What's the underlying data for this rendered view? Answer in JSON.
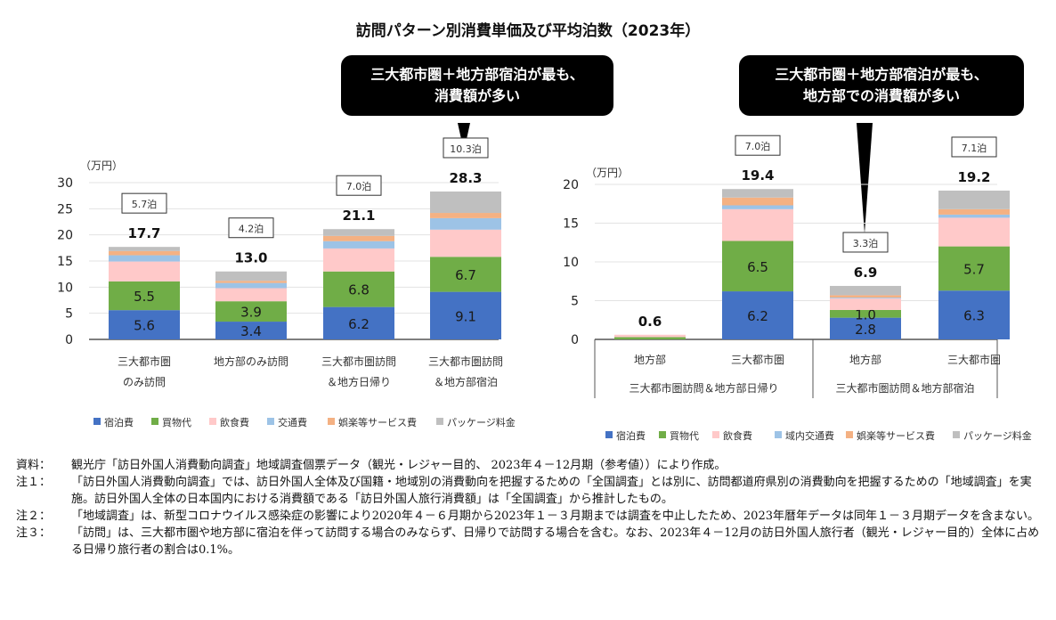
{
  "title": "訪問パターン別消費単価及び平均泊数（2023年）",
  "callouts": [
    {
      "lines": [
        "三大都市圏＋地方部宿泊が最も、",
        "消費額が多い"
      ]
    },
    {
      "lines": [
        "三大都市圏＋地方部宿泊が最も、",
        "地方部での消費額が多い"
      ]
    }
  ],
  "chart_data": [
    {
      "type": "bar",
      "stacked": true,
      "ylabel": "（万円）",
      "ylim": [
        0,
        30
      ],
      "yticks": [
        0,
        5,
        10,
        15,
        20,
        25,
        30
      ],
      "grid": true,
      "legend_position": "bottom",
      "categories": [
        [
          "三大都市圏",
          "のみ訪問"
        ],
        [
          "地方部のみ訪問"
        ],
        [
          "三大都市圏訪問",
          "＆地方日帰り"
        ],
        [
          "三大都市圏訪問",
          "＆地方部宿泊"
        ]
      ],
      "totals": [
        "17.7",
        "13.0",
        "21.1",
        "28.3"
      ],
      "nights": [
        "5.7泊",
        "4.2泊",
        "7.0泊",
        "10.3泊"
      ],
      "series": [
        {
          "name": "宿泊費",
          "color": "#4472c4",
          "values": [
            5.6,
            3.4,
            6.2,
            9.1
          ],
          "labeled": true
        },
        {
          "name": "買物代",
          "color": "#70ad47",
          "values": [
            5.5,
            3.9,
            6.8,
            6.7
          ],
          "labeled": true
        },
        {
          "name": "飲食費",
          "color": "#ffc9c9",
          "values": [
            3.8,
            2.5,
            4.4,
            5.2
          ]
        },
        {
          "name": "交通費",
          "color": "#9dc3e6",
          "values": [
            1.2,
            1.0,
            1.4,
            2.2
          ]
        },
        {
          "name": "娯楽等サービス費",
          "color": "#f4b183",
          "values": [
            0.8,
            0.4,
            1.0,
            1.0
          ]
        },
        {
          "name": "パッケージ料金",
          "color": "#bfbfbf",
          "values": [
            0.8,
            1.8,
            1.3,
            4.1
          ]
        }
      ]
    },
    {
      "type": "bar",
      "stacked": true,
      "ylabel": "（万円）",
      "ylim": [
        0,
        20
      ],
      "yticks": [
        0,
        5,
        10,
        15,
        20
      ],
      "grid": true,
      "legend_position": "bottom",
      "categories": [
        [
          "地方部"
        ],
        [
          "三大都市圏"
        ],
        [
          "地方部"
        ],
        [
          "三大都市圏"
        ]
      ],
      "groups": [
        "三大都市圏訪問＆地方部日帰り",
        "三大都市圏訪問＆地方部宿泊"
      ],
      "totals": [
        "0.6",
        "19.4",
        "6.9",
        "19.2"
      ],
      "nights": [
        "",
        "7.0泊",
        "3.3泊",
        "7.1泊"
      ],
      "series": [
        {
          "name": "宿泊費",
          "color": "#4472c4",
          "values": [
            0.0,
            6.2,
            2.8,
            6.3
          ],
          "labeled": true
        },
        {
          "name": "買物代",
          "color": "#70ad47",
          "values": [
            0.3,
            6.5,
            1.0,
            5.7
          ],
          "labeled": true
        },
        {
          "name": "飲食費",
          "color": "#ffc9c9",
          "values": [
            0.3,
            4.1,
            1.5,
            3.7
          ]
        },
        {
          "name": "域内交通費",
          "color": "#9dc3e6",
          "values": [
            0.0,
            0.5,
            0.1,
            0.4
          ]
        },
        {
          "name": "娯楽等サービス費",
          "color": "#f4b183",
          "values": [
            0.0,
            1.0,
            0.3,
            0.7
          ]
        },
        {
          "name": "パッケージ料金",
          "color": "#bfbfbf",
          "values": [
            0.0,
            1.1,
            1.2,
            2.4
          ]
        }
      ]
    }
  ],
  "notes": [
    {
      "label": "資料：",
      "text": "観光庁「訪日外国人消費動向調査」地域調査個票データ（観光・レジャー目的、 2023年４－12月期（参考値））により作成。"
    },
    {
      "label": "注１：",
      "text": "「訪日外国人消費動向調査」では、訪日外国人全体及び国籍・地域別の消費動向を把握するための「全国調査」とは別に、訪問都道府県別の消費動向を把握するための「地域調査」を実施。訪日外国人全体の日本国内における消費額である「訪日外国人旅行消費額」は「全国調査」から推計したもの。"
    },
    {
      "label": "注２：",
      "text": "「地域調査」は、新型コロナウイルス感染症の影響により2020年４－６月期から2023年１－３月期までは調査を中止したため、2023年暦年データは同年１－３月期データを含まない。"
    },
    {
      "label": "注３：",
      "text": "「訪問」は、三大都市圏や地方部に宿泊を伴って訪問する場合のみならず、日帰りで訪問する場合を含む。なお、2023年４－12月の訪日外国人旅行者（観光・レジャー目的）全体に占める日帰り旅行者の割合は0.1%。"
    }
  ]
}
